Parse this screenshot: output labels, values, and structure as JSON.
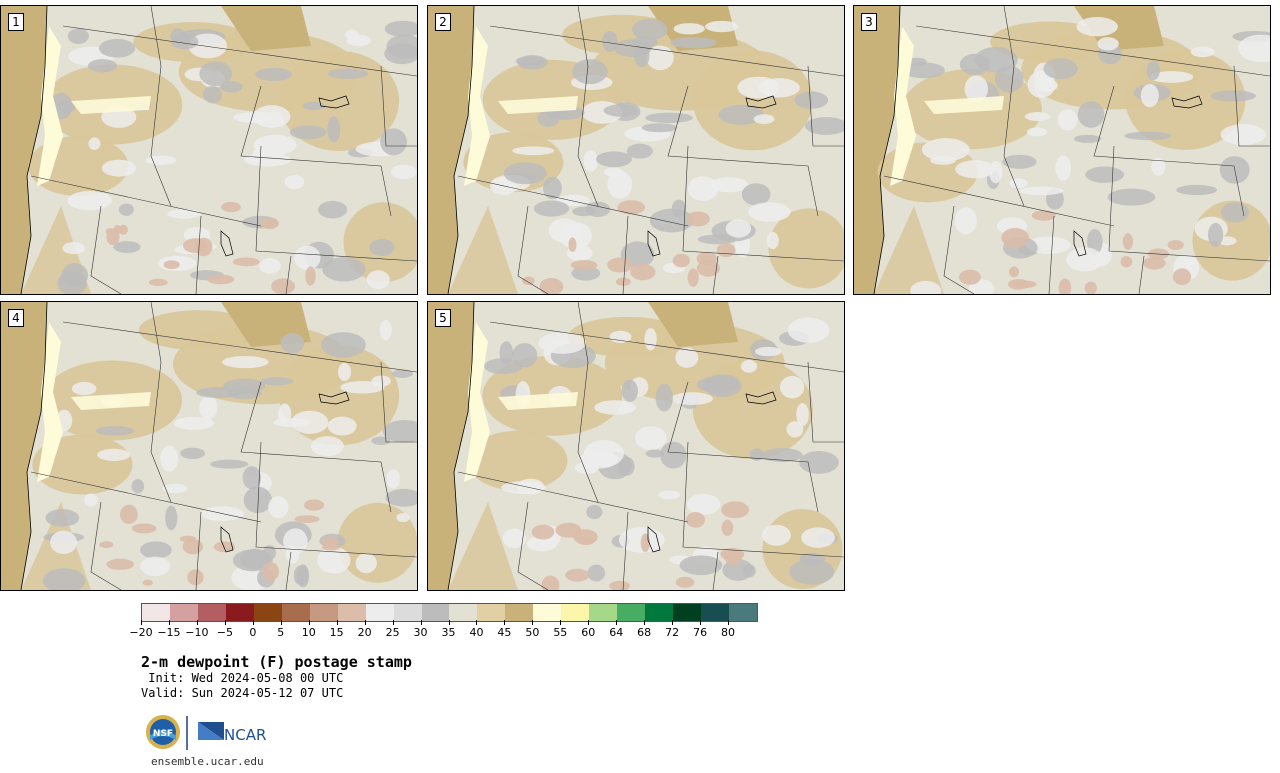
{
  "panels": [
    {
      "label": "1"
    },
    {
      "label": "2"
    },
    {
      "label": "3"
    },
    {
      "label": "4"
    },
    {
      "label": "5"
    }
  ],
  "colorbar": {
    "colors": [
      "#f2e6e6",
      "#d4a0a0",
      "#b35e60",
      "#8b1a1e",
      "#8a4512",
      "#a86d4c",
      "#c69a80",
      "#dcbdaa",
      "#ededed",
      "#dcdcdc",
      "#bcbcbc",
      "#e2e1d4",
      "#e0d0a4",
      "#c9b27a",
      "#fdfbd8",
      "#fbf6aa",
      "#a6d88a",
      "#46ad63",
      "#007a3c",
      "#003f1f",
      "#184e52",
      "#4a7a7c"
    ],
    "tick_labels": [
      "−20",
      "−15",
      "−10",
      "−5",
      "0",
      "5",
      "10",
      "15",
      "20",
      "25",
      "30",
      "35",
      "40",
      "45",
      "50",
      "55",
      "60",
      "64",
      "68",
      "72",
      "76",
      "80"
    ]
  },
  "title": "2-m dewpoint (F) postage stamp",
  "init_text": " Init: Wed 2024-05-08 00 UTC",
  "valid_text": "Valid: Sun 2024-05-12 07 UTC",
  "logos": {
    "nsf": "NSF",
    "ncar": "NCAR"
  },
  "url": "ensemble.ucar.edu",
  "map_colors": {
    "ocean": "#c9b27a",
    "land_light": "#e2e1d4",
    "tan": "#d9c699",
    "dark_tan": "#c9b27a",
    "gray": "#bcbcbc",
    "light_gray": "#ededed",
    "cream": "#fdfbd8",
    "pink": "#dcbdaa"
  }
}
